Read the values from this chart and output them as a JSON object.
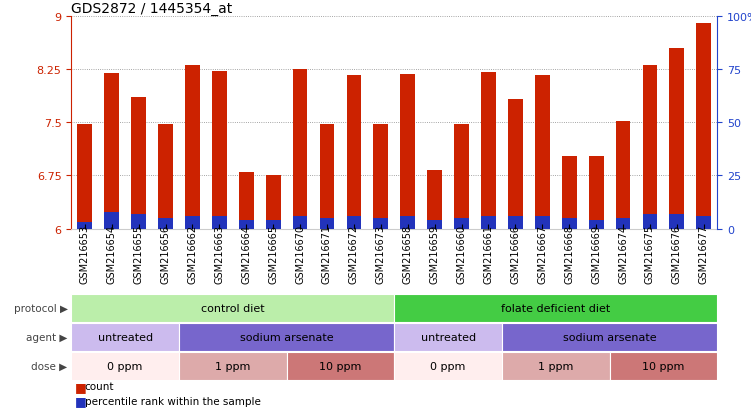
{
  "title": "GDS2872 / 1445354_at",
  "samples": [
    "GSM216653",
    "GSM216654",
    "GSM216655",
    "GSM216656",
    "GSM216662",
    "GSM216663",
    "GSM216664",
    "GSM216665",
    "GSM216670",
    "GSM216671",
    "GSM216672",
    "GSM216673",
    "GSM216658",
    "GSM216659",
    "GSM216660",
    "GSM216661",
    "GSM216666",
    "GSM216667",
    "GSM216668",
    "GSM216669",
    "GSM216674",
    "GSM216675",
    "GSM216676",
    "GSM216677"
  ],
  "count_values": [
    7.47,
    8.19,
    7.85,
    7.47,
    8.3,
    8.22,
    6.8,
    6.75,
    8.25,
    7.47,
    8.17,
    7.47,
    8.18,
    6.82,
    7.47,
    8.2,
    7.82,
    8.17,
    7.03,
    7.03,
    7.52,
    8.3,
    8.55,
    8.9
  ],
  "percentile_values": [
    3.0,
    8.0,
    7.0,
    5.0,
    6.0,
    6.0,
    4.0,
    4.0,
    6.0,
    5.0,
    6.0,
    5.0,
    6.0,
    4.0,
    5.0,
    6.0,
    6.0,
    6.0,
    5.0,
    4.0,
    5.0,
    7.0,
    7.0,
    6.0
  ],
  "ymin": 6.0,
  "ymax": 9.0,
  "yticks": [
    6.0,
    6.75,
    7.5,
    8.25,
    9.0
  ],
  "ytick_labels": [
    "6",
    "6.75",
    "7.5",
    "8.25",
    "9"
  ],
  "right_yticks": [
    0,
    25,
    50,
    75,
    100
  ],
  "right_ytick_labels": [
    "0",
    "25",
    "50",
    "75",
    "100%"
  ],
  "bar_color": "#cc2200",
  "blue_color": "#2233bb",
  "bar_width": 0.55,
  "protocol_row": {
    "label": "protocol",
    "segments": [
      {
        "text": "control diet",
        "start": 0,
        "end": 12,
        "color": "#bbeeaa",
        "textcolor": "#000000"
      },
      {
        "text": "folate deficient diet",
        "start": 12,
        "end": 24,
        "color": "#44cc44",
        "textcolor": "#000000"
      }
    ]
  },
  "agent_row": {
    "label": "agent",
    "segments": [
      {
        "text": "untreated",
        "start": 0,
        "end": 4,
        "color": "#ccbbee",
        "textcolor": "#000000"
      },
      {
        "text": "sodium arsenate",
        "start": 4,
        "end": 12,
        "color": "#7766cc",
        "textcolor": "#000000"
      },
      {
        "text": "untreated",
        "start": 12,
        "end": 16,
        "color": "#ccbbee",
        "textcolor": "#000000"
      },
      {
        "text": "sodium arsenate",
        "start": 16,
        "end": 24,
        "color": "#7766cc",
        "textcolor": "#000000"
      }
    ]
  },
  "dose_row": {
    "label": "dose",
    "segments": [
      {
        "text": "0 ppm",
        "start": 0,
        "end": 4,
        "color": "#ffeeee",
        "textcolor": "#000000"
      },
      {
        "text": "1 ppm",
        "start": 4,
        "end": 8,
        "color": "#ddaaaa",
        "textcolor": "#000000"
      },
      {
        "text": "10 ppm",
        "start": 8,
        "end": 12,
        "color": "#cc7777",
        "textcolor": "#000000"
      },
      {
        "text": "0 ppm",
        "start": 12,
        "end": 16,
        "color": "#ffeeee",
        "textcolor": "#000000"
      },
      {
        "text": "1 ppm",
        "start": 16,
        "end": 20,
        "color": "#ddaaaa",
        "textcolor": "#000000"
      },
      {
        "text": "10 ppm",
        "start": 20,
        "end": 24,
        "color": "#cc7777",
        "textcolor": "#000000"
      }
    ]
  },
  "grid_color": "#888888",
  "axis_color": "#cc2200",
  "right_axis_color": "#2244cc",
  "bg_color": "#ffffff",
  "title_fontsize": 10,
  "tick_fontsize": 8,
  "label_fontsize": 8
}
